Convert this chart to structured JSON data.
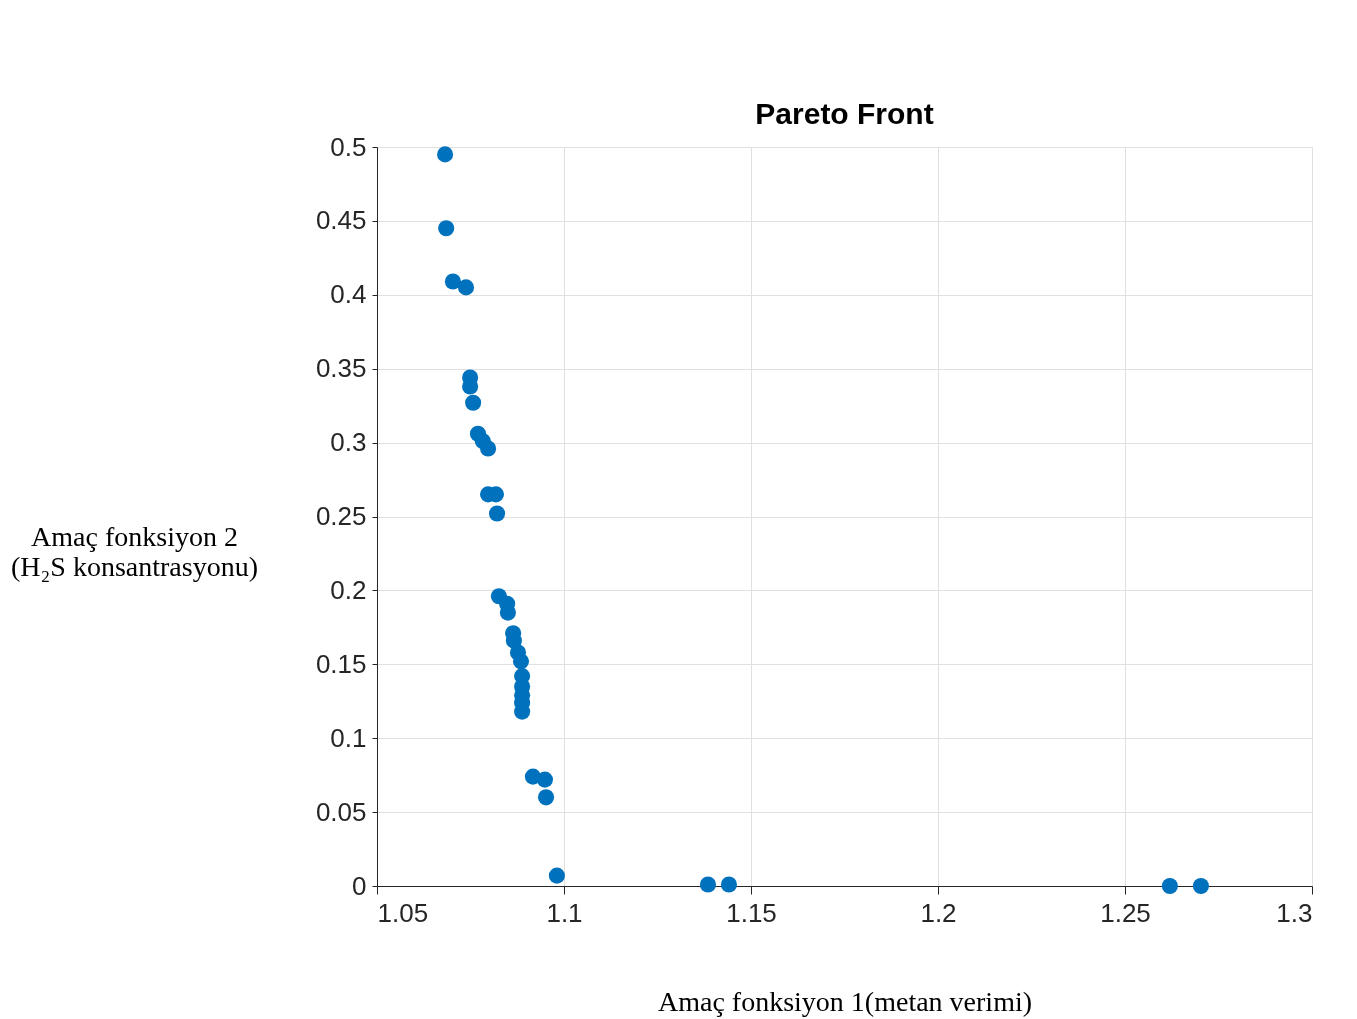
{
  "chart_data": {
    "type": "scatter",
    "title": "Pareto Front",
    "xlabel": "Amaç fonksiyon 1(metan verimi)",
    "ylabel": "Amaç fonksiyon 2\n(H₂S konsantrasyonu)",
    "xlim": [
      1.05,
      1.3
    ],
    "xticks": [
      1.05,
      1.1,
      1.15,
      1.2,
      1.25,
      1.3
    ],
    "ylim": [
      0,
      0.5
    ],
    "yticks": [
      0,
      0.05,
      0.1,
      0.15,
      0.2,
      0.25,
      0.3,
      0.35,
      0.4,
      0.45,
      0.5
    ],
    "grid": true,
    "marker": "circle",
    "series": [
      {
        "color": "#0072bd",
        "x": [
          1.0682,
          1.0685,
          1.0703,
          1.0738,
          1.0749,
          1.0749,
          1.0757,
          1.077,
          1.0783,
          1.0797,
          1.0797,
          1.0818,
          1.0821,
          1.0826,
          1.0848,
          1.085,
          1.0864,
          1.0866,
          1.0877,
          1.0885,
          1.0888,
          1.0888,
          1.0888,
          1.0888,
          1.0888,
          1.0917,
          1.0949,
          1.0952,
          1.0981,
          1.1385,
          1.1441,
          1.262,
          1.2703
        ],
        "values": [
          0.495,
          0.445,
          0.409,
          0.405,
          0.344,
          0.338,
          0.327,
          0.306,
          0.301,
          0.296,
          0.265,
          0.265,
          0.252,
          0.196,
          0.191,
          0.185,
          0.171,
          0.166,
          0.158,
          0.152,
          0.142,
          0.135,
          0.129,
          0.124,
          0.118,
          0.074,
          0.072,
          0.06,
          0.007,
          0.001,
          0.001,
          0,
          0
        ]
      }
    ]
  }
}
